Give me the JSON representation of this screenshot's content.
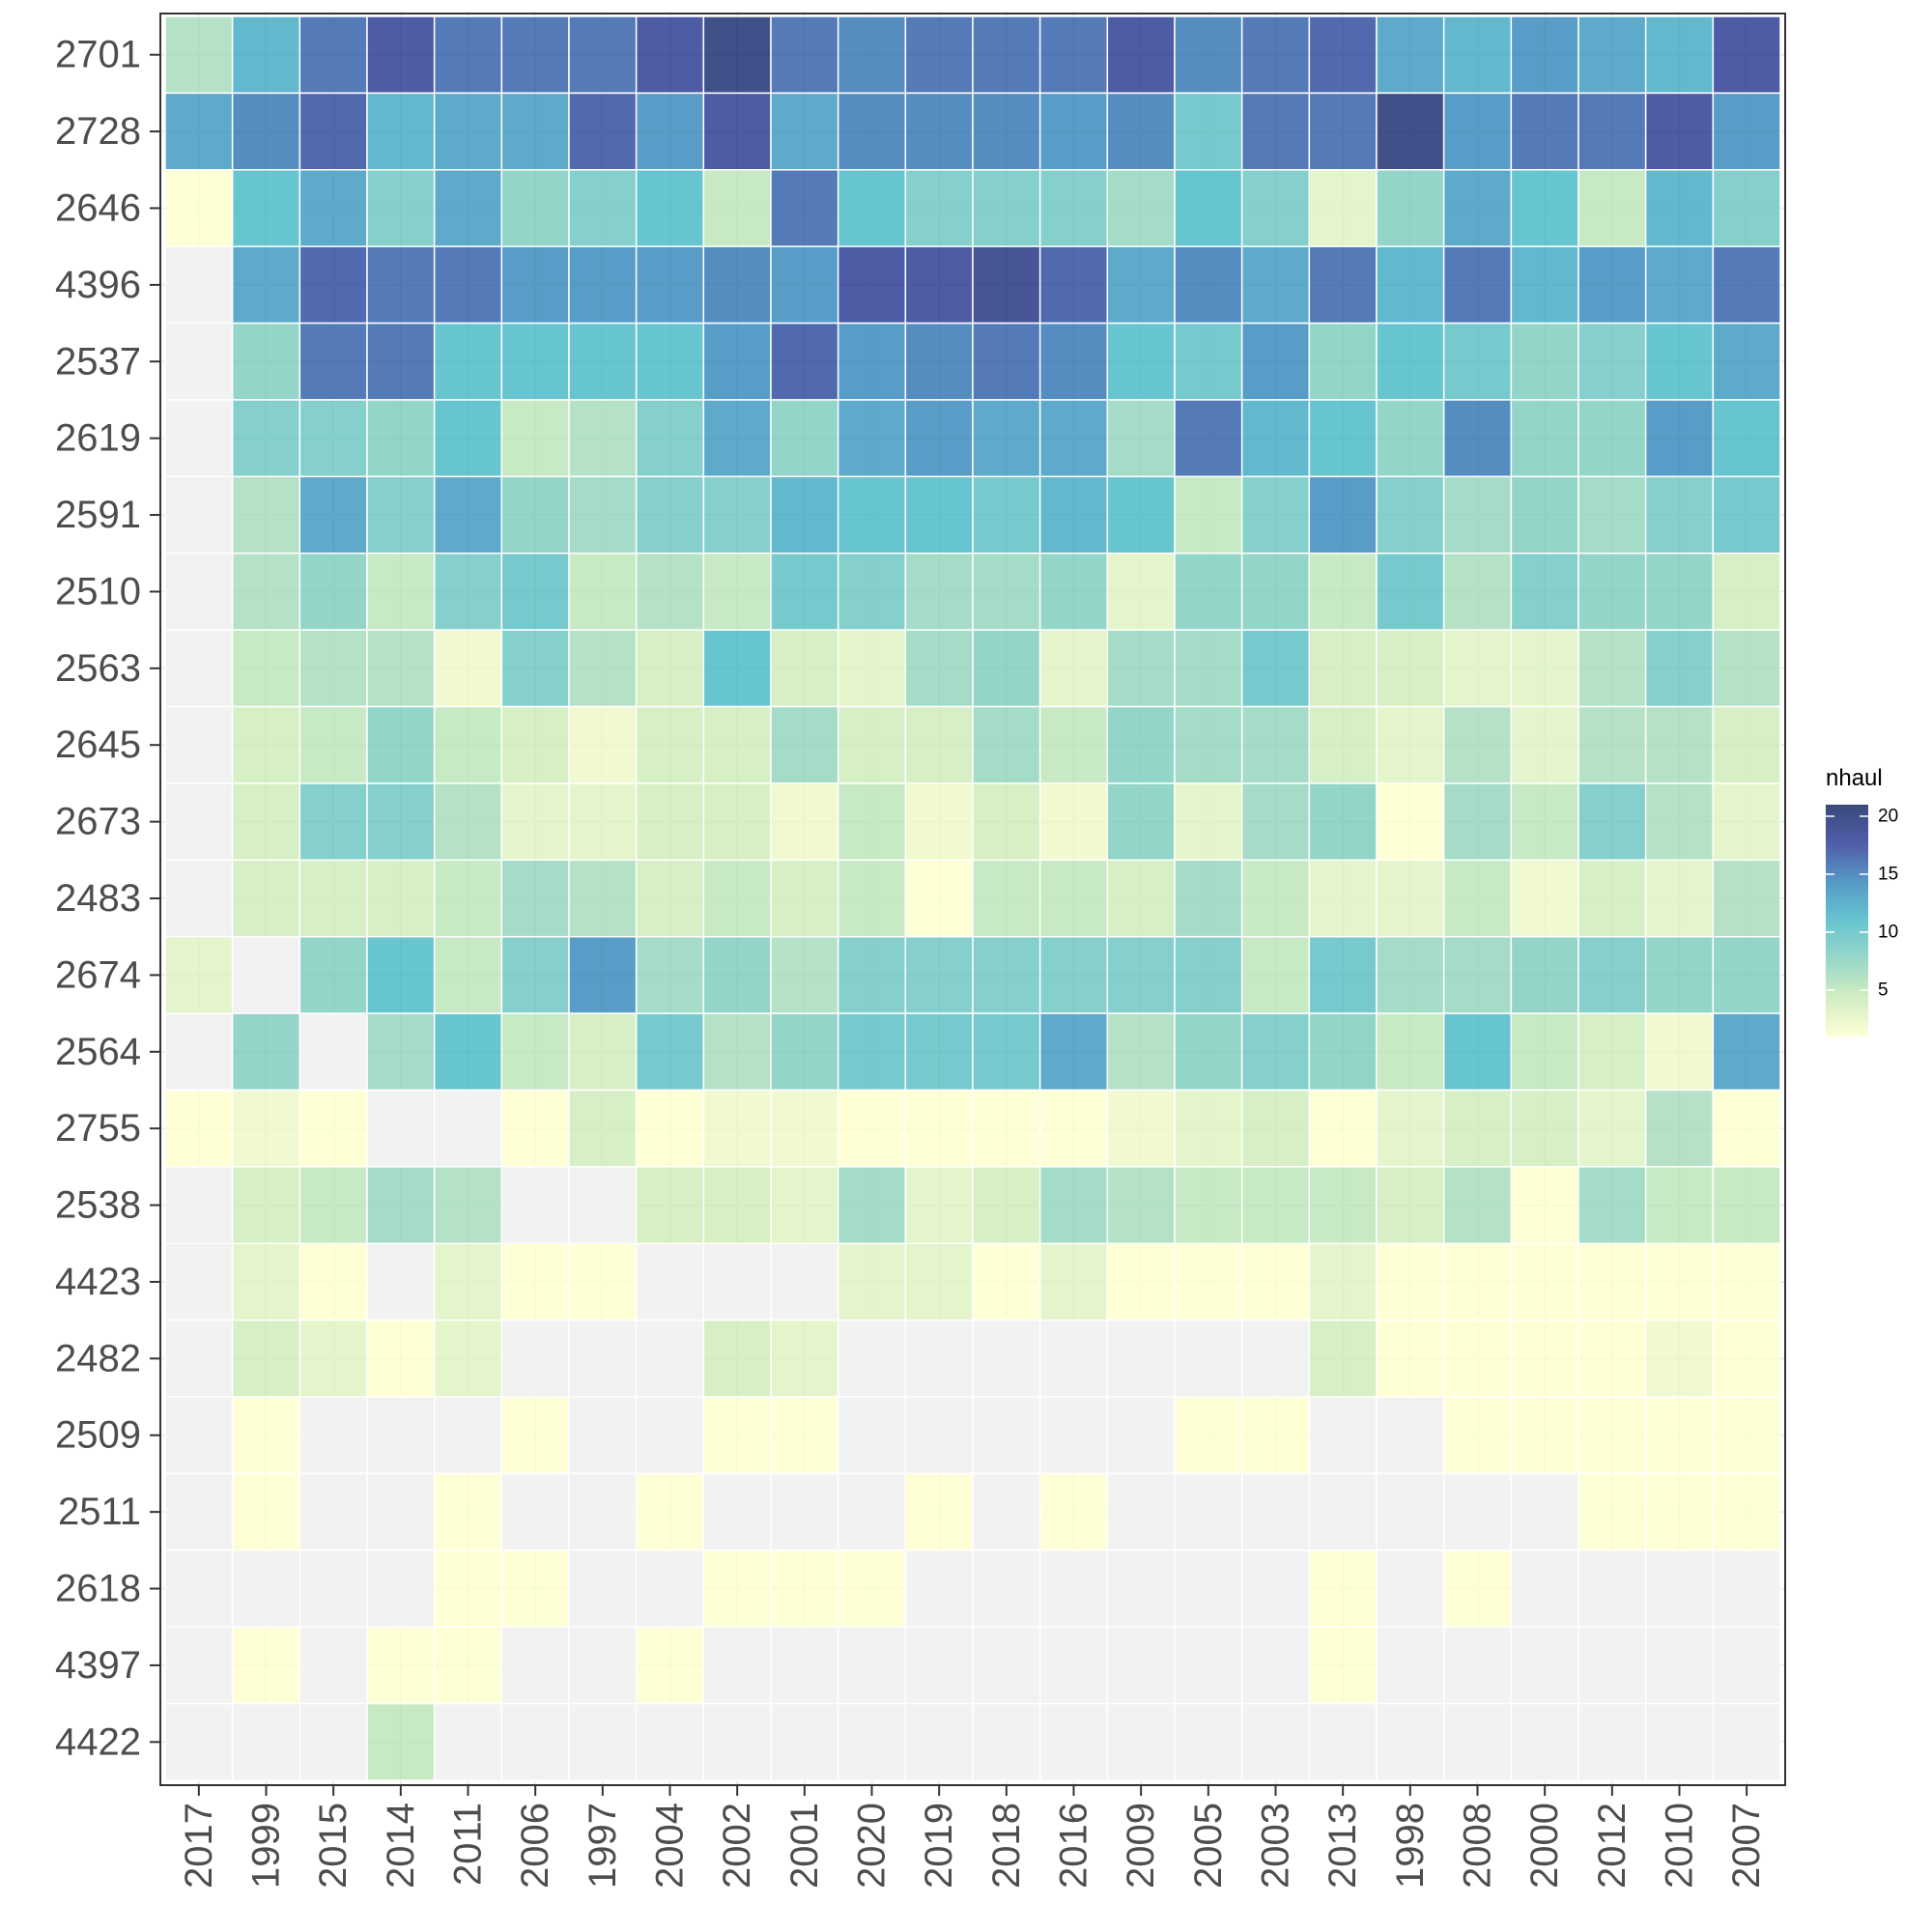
{
  "chart_data": {
    "type": "heatmap",
    "title": "",
    "xlabel": "",
    "ylabel": "",
    "x_categories": [
      "2017",
      "1999",
      "2015",
      "2014",
      "2011",
      "2006",
      "1997",
      "2004",
      "2002",
      "2001",
      "2020",
      "2019",
      "2018",
      "2016",
      "2009",
      "2005",
      "2003",
      "2013",
      "1998",
      "2008",
      "2000",
      "2012",
      "2010",
      "2007"
    ],
    "y_categories": [
      "2701",
      "2728",
      "2646",
      "4396",
      "2537",
      "2619",
      "2591",
      "2510",
      "2563",
      "2645",
      "2673",
      "2483",
      "2674",
      "2564",
      "2755",
      "2538",
      "4423",
      "2482",
      "2509",
      "2511",
      "2618",
      "4397",
      "4422"
    ],
    "values": [
      [
        6,
        12,
        16,
        18,
        16,
        16,
        16,
        18,
        20,
        16,
        15,
        16,
        16,
        16,
        18,
        15,
        16,
        17,
        13,
        12,
        14,
        13,
        12,
        18
      ],
      [
        13,
        15,
        17,
        12,
        13,
        13,
        17,
        14,
        18,
        13,
        15,
        15,
        15,
        14,
        15,
        10,
        16,
        16,
        20,
        14,
        16,
        16,
        18,
        14
      ],
      [
        1,
        11,
        13,
        9,
        13,
        8,
        9,
        11,
        5,
        16,
        11,
        9,
        9,
        9,
        7,
        11,
        9,
        3,
        8,
        13,
        11,
        5,
        12,
        9
      ],
      [
        null,
        13,
        17,
        16,
        16,
        14,
        14,
        14,
        15,
        14,
        18,
        18,
        19,
        17,
        13,
        15,
        13,
        16,
        12,
        16,
        12,
        14,
        13,
        16
      ],
      [
        null,
        8,
        16,
        16,
        11,
        11,
        11,
        11,
        14,
        17,
        14,
        15,
        16,
        15,
        11,
        10,
        14,
        8,
        11,
        10,
        8,
        9,
        11,
        13
      ],
      [
        null,
        9,
        9,
        8,
        11,
        5,
        6,
        9,
        13,
        8,
        13,
        14,
        13,
        13,
        7,
        16,
        12,
        11,
        8,
        15,
        8,
        8,
        14,
        11
      ],
      [
        null,
        6,
        13,
        9,
        13,
        8,
        7,
        9,
        9,
        12,
        11,
        11,
        10,
        12,
        11,
        5,
        9,
        14,
        9,
        7,
        8,
        7,
        9,
        10
      ],
      [
        null,
        6,
        8,
        5,
        9,
        10,
        5,
        6,
        5,
        10,
        9,
        7,
        7,
        8,
        3,
        8,
        8,
        5,
        10,
        6,
        9,
        8,
        8,
        4
      ],
      [
        null,
        5,
        6,
        6,
        2,
        9,
        6,
        4,
        11,
        4,
        3,
        7,
        8,
        3,
        7,
        7,
        10,
        4,
        4,
        3,
        3,
        6,
        9,
        6
      ],
      [
        null,
        4,
        5,
        8,
        5,
        4,
        2,
        4,
        4,
        7,
        4,
        4,
        7,
        5,
        8,
        7,
        7,
        4,
        3,
        6,
        3,
        6,
        6,
        4
      ],
      [
        null,
        4,
        9,
        9,
        6,
        3,
        3,
        4,
        4,
        2,
        5,
        2,
        4,
        2,
        8,
        3,
        7,
        8,
        1,
        7,
        5,
        9,
        6,
        3
      ],
      [
        null,
        4,
        4,
        4,
        5,
        7,
        6,
        4,
        5,
        4,
        5,
        1,
        5,
        5,
        4,
        7,
        5,
        3,
        3,
        5,
        2,
        4,
        3,
        6
      ],
      [
        3,
        null,
        8,
        11,
        5,
        9,
        14,
        7,
        8,
        6,
        9,
        9,
        9,
        9,
        9,
        9,
        5,
        10,
        7,
        7,
        8,
        9,
        8,
        8
      ],
      [
        null,
        8,
        null,
        7,
        11,
        5,
        4,
        10,
        6,
        8,
        10,
        10,
        10,
        13,
        6,
        8,
        9,
        8,
        5,
        11,
        5,
        4,
        2,
        13
      ],
      [
        1,
        2,
        1,
        null,
        null,
        1,
        4,
        1,
        2,
        2,
        1,
        1,
        1,
        1,
        2,
        3,
        4,
        1,
        3,
        4,
        4,
        3,
        6,
        1
      ],
      [
        null,
        4,
        5,
        7,
        6,
        null,
        null,
        4,
        4,
        3,
        7,
        3,
        4,
        7,
        6,
        5,
        5,
        5,
        4,
        6,
        1,
        7,
        5,
        5
      ],
      [
        null,
        3,
        1,
        null,
        3,
        1,
        1,
        null,
        null,
        null,
        3,
        3,
        1,
        3,
        1,
        1,
        1,
        3,
        1,
        1,
        1,
        1,
        1,
        1
      ],
      [
        null,
        4,
        3,
        1,
        3,
        null,
        null,
        null,
        4,
        3,
        null,
        null,
        null,
        null,
        null,
        null,
        null,
        4,
        1,
        1,
        1,
        1,
        2,
        1
      ],
      [
        null,
        1,
        null,
        null,
        null,
        1,
        null,
        null,
        1,
        1,
        null,
        null,
        null,
        null,
        null,
        1,
        1,
        null,
        null,
        1,
        1,
        1,
        1,
        1
      ],
      [
        null,
        1,
        null,
        null,
        1,
        null,
        null,
        1,
        null,
        null,
        null,
        1,
        null,
        1,
        null,
        null,
        null,
        null,
        null,
        null,
        null,
        1,
        1,
        1
      ],
      [
        null,
        null,
        null,
        null,
        1,
        1,
        null,
        null,
        1,
        1,
        1,
        null,
        null,
        null,
        null,
        null,
        null,
        1,
        null,
        1,
        null,
        null,
        null,
        null
      ],
      [
        null,
        1,
        null,
        1,
        1,
        null,
        null,
        1,
        null,
        null,
        null,
        null,
        null,
        null,
        null,
        null,
        null,
        1,
        null,
        null,
        null,
        null,
        null,
        null
      ],
      [
        null,
        null,
        null,
        5,
        null,
        null,
        null,
        null,
        null,
        null,
        null,
        null,
        null,
        null,
        null,
        null,
        null,
        null,
        null,
        null,
        null,
        null,
        null,
        null
      ]
    ],
    "color_scale": {
      "min": 1,
      "max": 21,
      "stops": [
        "#FFFFCC",
        "#C7E9B4",
        "#7FCDBB",
        "#41B6C4",
        "#2C7FB8",
        "#253494",
        "#081D58"
      ],
      "missing_color": "#F2F2F2",
      "alpha": 0.8
    },
    "legend": {
      "title": "nhaul",
      "position": "right",
      "ticks": [
        5,
        10,
        15,
        20
      ]
    },
    "grid": true,
    "panel_background": "#FFFFFF",
    "grid_color": "#EBEBEB",
    "tile_border_color": "#FFFFFF"
  }
}
